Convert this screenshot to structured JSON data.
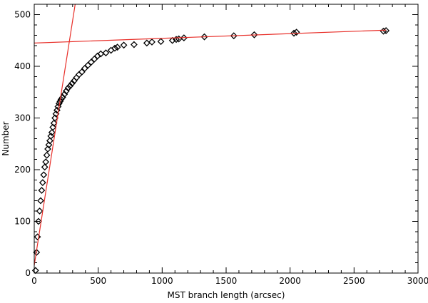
{
  "chart_data": {
    "type": "scatter",
    "xlabel": "MST branch length (arcsec)",
    "ylabel": "Number",
    "xlim": [
      0,
      3000
    ],
    "ylim": [
      0,
      520
    ],
    "xticks": [
      0,
      500,
      1000,
      1500,
      2000,
      2500,
      3000
    ],
    "yticks": [
      0,
      100,
      200,
      300,
      400,
      500
    ],
    "grid": false,
    "marker": "diamond",
    "marker_color": "#000000",
    "fit_line_color": "#e8302a",
    "series": [
      {
        "values_x": [
          10,
          18,
          25,
          33,
          42,
          50,
          58,
          66,
          74,
          82,
          90,
          98,
          106,
          114,
          122,
          130,
          138,
          146,
          154,
          162,
          170,
          178,
          186,
          194,
          202,
          210,
          222,
          236,
          250,
          265,
          280,
          296,
          312,
          330,
          350,
          372,
          395,
          420,
          445,
          470,
          495,
          520,
          560,
          600,
          630,
          650,
          700,
          780,
          880,
          920,
          990,
          1080,
          1110,
          1130,
          1170,
          1330,
          1560,
          1720,
          2030,
          2050,
          2730,
          2750
        ],
        "values_y": [
          5,
          40,
          70,
          100,
          120,
          140,
          160,
          175,
          190,
          205,
          215,
          228,
          240,
          248,
          256,
          265,
          272,
          282,
          290,
          300,
          308,
          315,
          322,
          328,
          332,
          336,
          340,
          346,
          352,
          358,
          362,
          367,
          372,
          378,
          384,
          389,
          396,
          402,
          408,
          414,
          420,
          424,
          426,
          431,
          435,
          437,
          441,
          442,
          445,
          447,
          448,
          450,
          452,
          453,
          455,
          457,
          459,
          461,
          464,
          466,
          468,
          469
        ]
      }
    ],
    "fit_lines": [
      {
        "x": [
          0,
          320
        ],
        "y": [
          15,
          520
        ]
      },
      {
        "x": [
          0,
          2750
        ],
        "y": [
          445,
          470
        ]
      }
    ]
  }
}
